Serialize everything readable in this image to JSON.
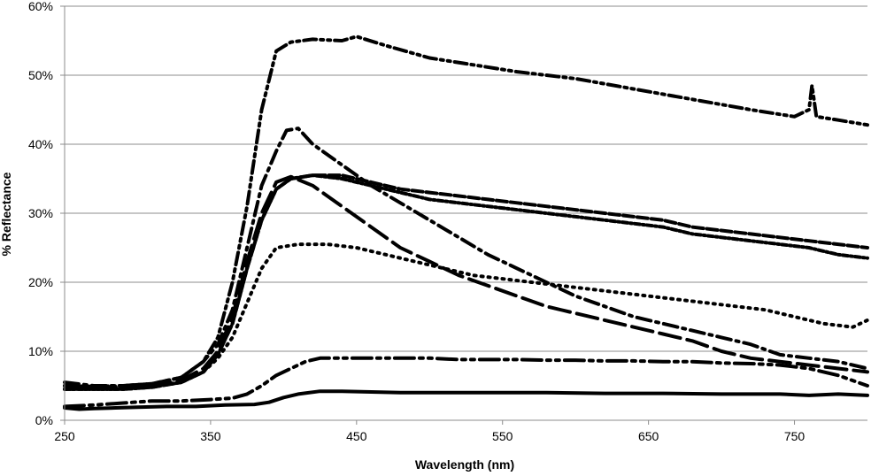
{
  "chart_data": {
    "type": "line",
    "title": "",
    "xlabel": "Wavelength (nm)",
    "ylabel": "% Reflectance",
    "xlim": [
      250,
      800
    ],
    "ylim": [
      0,
      60
    ],
    "x_ticks": [
      250,
      350,
      450,
      550,
      650,
      750
    ],
    "x_tick_labels": [
      "250",
      "350",
      "450",
      "550",
      "650",
      "750"
    ],
    "y_ticks": [
      0,
      10,
      20,
      30,
      40,
      50,
      60
    ],
    "y_tick_labels": [
      "0%",
      "10%",
      "20%",
      "30%",
      "40%",
      "50%",
      "60%"
    ],
    "grid": "horizontal",
    "legend": "none",
    "series": [
      {
        "dash": "14 5 3 5 3 5",
        "points": [
          [
            250,
            5
          ],
          [
            270,
            4.9
          ],
          [
            290,
            5
          ],
          [
            310,
            5.3
          ],
          [
            330,
            6.2
          ],
          [
            345,
            8.5
          ],
          [
            355,
            12
          ],
          [
            365,
            20
          ],
          [
            375,
            31
          ],
          [
            385,
            45
          ],
          [
            395,
            53.5
          ],
          [
            405,
            54.8
          ],
          [
            420,
            55.2
          ],
          [
            440,
            55
          ],
          [
            450,
            55.6
          ],
          [
            470,
            54.3
          ],
          [
            500,
            52.5
          ],
          [
            530,
            51.5
          ],
          [
            560,
            50.5
          ],
          [
            600,
            49.5
          ],
          [
            640,
            48
          ],
          [
            680,
            46.5
          ],
          [
            720,
            45
          ],
          [
            750,
            44
          ],
          [
            760,
            45
          ],
          [
            762,
            48.5
          ],
          [
            765,
            44
          ],
          [
            780,
            43.5
          ],
          [
            800,
            42.8
          ]
        ]
      },
      {
        "dash": "16 6 3 6",
        "points": [
          [
            250,
            5.5
          ],
          [
            270,
            5
          ],
          [
            290,
            5
          ],
          [
            310,
            5.3
          ],
          [
            330,
            6.2
          ],
          [
            345,
            8.5
          ],
          [
            355,
            11
          ],
          [
            365,
            16
          ],
          [
            375,
            25
          ],
          [
            385,
            34
          ],
          [
            395,
            39
          ],
          [
            402,
            42
          ],
          [
            410,
            42.3
          ],
          [
            420,
            40
          ],
          [
            440,
            37
          ],
          [
            460,
            34
          ],
          [
            480,
            31.5
          ],
          [
            500,
            29
          ],
          [
            520,
            26.5
          ],
          [
            540,
            24
          ],
          [
            560,
            22
          ],
          [
            580,
            20
          ],
          [
            600,
            18
          ],
          [
            620,
            16.5
          ],
          [
            640,
            15
          ],
          [
            660,
            14
          ],
          [
            680,
            13
          ],
          [
            700,
            12
          ],
          [
            720,
            11
          ],
          [
            740,
            9.5
          ],
          [
            760,
            9
          ],
          [
            780,
            8.5
          ],
          [
            800,
            7.5
          ]
        ]
      },
      {
        "dash": "24 8",
        "points": [
          [
            250,
            5
          ],
          [
            270,
            4.8
          ],
          [
            290,
            4.8
          ],
          [
            310,
            5
          ],
          [
            330,
            5.8
          ],
          [
            345,
            7.5
          ],
          [
            355,
            10
          ],
          [
            365,
            15
          ],
          [
            375,
            23
          ],
          [
            385,
            30
          ],
          [
            395,
            34.5
          ],
          [
            405,
            35.3
          ],
          [
            420,
            34
          ],
          [
            440,
            31
          ],
          [
            460,
            28
          ],
          [
            480,
            25
          ],
          [
            500,
            23
          ],
          [
            520,
            21
          ],
          [
            540,
            19.5
          ],
          [
            560,
            18
          ],
          [
            580,
            16.5
          ],
          [
            600,
            15.5
          ],
          [
            620,
            14.5
          ],
          [
            640,
            13.5
          ],
          [
            660,
            12.5
          ],
          [
            680,
            11.5
          ],
          [
            700,
            10
          ],
          [
            720,
            9
          ],
          [
            740,
            8.5
          ],
          [
            760,
            8
          ],
          [
            780,
            7.5
          ],
          [
            800,
            7
          ]
        ]
      },
      {
        "dash": "12 4",
        "points": [
          [
            250,
            4.5
          ],
          [
            270,
            4.5
          ],
          [
            290,
            4.5
          ],
          [
            310,
            4.8
          ],
          [
            330,
            5.5
          ],
          [
            345,
            7
          ],
          [
            355,
            9.5
          ],
          [
            365,
            14
          ],
          [
            375,
            22
          ],
          [
            385,
            29
          ],
          [
            395,
            33.5
          ],
          [
            405,
            35
          ],
          [
            420,
            35.5
          ],
          [
            440,
            35.5
          ],
          [
            460,
            34.5
          ],
          [
            480,
            33.5
          ],
          [
            500,
            33
          ],
          [
            520,
            32.5
          ],
          [
            540,
            32
          ],
          [
            560,
            31.5
          ],
          [
            580,
            31
          ],
          [
            600,
            30.5
          ],
          [
            620,
            30
          ],
          [
            640,
            29.5
          ],
          [
            660,
            29
          ],
          [
            680,
            28
          ],
          [
            700,
            27.5
          ],
          [
            720,
            27
          ],
          [
            740,
            26.5
          ],
          [
            760,
            26
          ],
          [
            780,
            25.5
          ],
          [
            800,
            25
          ]
        ]
      },
      {
        "dash": "6 3 2 3",
        "points": [
          [
            250,
            4.5
          ],
          [
            270,
            4.5
          ],
          [
            290,
            4.5
          ],
          [
            310,
            4.8
          ],
          [
            330,
            5.5
          ],
          [
            345,
            7
          ],
          [
            355,
            9.5
          ],
          [
            365,
            14
          ],
          [
            375,
            22
          ],
          [
            385,
            29
          ],
          [
            395,
            33.5
          ],
          [
            405,
            35
          ],
          [
            420,
            35.5
          ],
          [
            440,
            35
          ],
          [
            460,
            34
          ],
          [
            480,
            33
          ],
          [
            500,
            32
          ],
          [
            520,
            31.5
          ],
          [
            540,
            31
          ],
          [
            560,
            30.5
          ],
          [
            580,
            30
          ],
          [
            600,
            29.5
          ],
          [
            620,
            29
          ],
          [
            640,
            28.5
          ],
          [
            660,
            28
          ],
          [
            680,
            27
          ],
          [
            700,
            26.5
          ],
          [
            720,
            26
          ],
          [
            740,
            25.5
          ],
          [
            760,
            25
          ],
          [
            780,
            24
          ],
          [
            800,
            23.5
          ]
        ]
      },
      {
        "dash": "2 6",
        "points": [
          [
            250,
            4.5
          ],
          [
            270,
            4.7
          ],
          [
            290,
            4.8
          ],
          [
            310,
            5
          ],
          [
            330,
            5.5
          ],
          [
            345,
            7
          ],
          [
            355,
            9
          ],
          [
            365,
            12
          ],
          [
            375,
            17
          ],
          [
            385,
            22
          ],
          [
            395,
            25
          ],
          [
            410,
            25.5
          ],
          [
            430,
            25.5
          ],
          [
            450,
            25
          ],
          [
            470,
            24
          ],
          [
            490,
            23
          ],
          [
            510,
            22
          ],
          [
            530,
            21
          ],
          [
            550,
            20.5
          ],
          [
            570,
            20
          ],
          [
            590,
            19.5
          ],
          [
            610,
            19
          ],
          [
            630,
            18.5
          ],
          [
            650,
            18
          ],
          [
            670,
            17.5
          ],
          [
            690,
            17
          ],
          [
            710,
            16.5
          ],
          [
            730,
            16
          ],
          [
            750,
            15
          ],
          [
            770,
            14
          ],
          [
            790,
            13.5
          ],
          [
            800,
            14.5
          ]
        ]
      },
      {
        "dash": "22 6 4 6 4 6",
        "points": [
          [
            250,
            2
          ],
          [
            270,
            2.2
          ],
          [
            290,
            2.5
          ],
          [
            310,
            2.8
          ],
          [
            330,
            2.8
          ],
          [
            350,
            3
          ],
          [
            365,
            3.2
          ],
          [
            375,
            3.8
          ],
          [
            385,
            5
          ],
          [
            395,
            6.5
          ],
          [
            405,
            7.5
          ],
          [
            415,
            8.5
          ],
          [
            425,
            9
          ],
          [
            440,
            9
          ],
          [
            460,
            9
          ],
          [
            480,
            9
          ],
          [
            500,
            9
          ],
          [
            520,
            8.8
          ],
          [
            540,
            8.8
          ],
          [
            560,
            8.8
          ],
          [
            580,
            8.7
          ],
          [
            600,
            8.7
          ],
          [
            620,
            8.6
          ],
          [
            640,
            8.6
          ],
          [
            660,
            8.5
          ],
          [
            680,
            8.5
          ],
          [
            700,
            8.3
          ],
          [
            720,
            8.2
          ],
          [
            740,
            8
          ],
          [
            760,
            7.5
          ],
          [
            780,
            6.5
          ],
          [
            800,
            5
          ]
        ]
      },
      {
        "dash": "",
        "points": [
          [
            250,
            1.8
          ],
          [
            260,
            1.6
          ],
          [
            270,
            1.7
          ],
          [
            285,
            1.8
          ],
          [
            300,
            1.9
          ],
          [
            320,
            2
          ],
          [
            340,
            2
          ],
          [
            360,
            2.2
          ],
          [
            380,
            2.3
          ],
          [
            390,
            2.6
          ],
          [
            400,
            3.3
          ],
          [
            410,
            3.8
          ],
          [
            425,
            4.2
          ],
          [
            440,
            4.2
          ],
          [
            460,
            4.1
          ],
          [
            480,
            4
          ],
          [
            500,
            4
          ],
          [
            540,
            4
          ],
          [
            580,
            4
          ],
          [
            620,
            3.9
          ],
          [
            660,
            3.9
          ],
          [
            700,
            3.8
          ],
          [
            740,
            3.8
          ],
          [
            760,
            3.6
          ],
          [
            780,
            3.8
          ],
          [
            800,
            3.6
          ]
        ]
      }
    ]
  }
}
